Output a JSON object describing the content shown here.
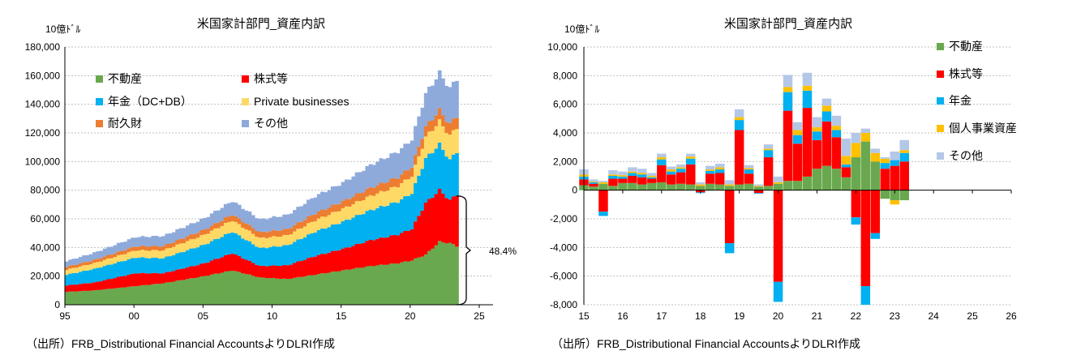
{
  "source_note": "（出所）FRB_Distributional Financial AccountsよりDLRI作成",
  "colors": {
    "real_estate": "#6aa84f",
    "equities": "#ff0000",
    "pension": "#00b0f0",
    "private_business": "#ffd966",
    "durables": "#ed7d31",
    "other": "#8eaadb",
    "other_right": "#b4c7e7",
    "private_business_right": "#ffc000"
  },
  "chart_data": [
    {
      "type": "area",
      "title": "米国家計部門_資産内訳",
      "ylabel": "10億ﾄﾞﾙ",
      "ylim": [
        0,
        180000
      ],
      "yticks": [
        0,
        20000,
        40000,
        60000,
        80000,
        100000,
        120000,
        140000,
        160000,
        180000
      ],
      "ytick_labels": [
        "0",
        "20,000",
        "40,000",
        "60,000",
        "80,000",
        "100,000",
        "120,000",
        "140,000",
        "160,000",
        "180,000"
      ],
      "xlim": [
        1995,
        2026
      ],
      "xticks": [
        1995,
        2000,
        2005,
        2010,
        2015,
        2020,
        2025
      ],
      "xtick_labels": [
        "95",
        "00",
        "05",
        "10",
        "15",
        "20",
        "25"
      ],
      "annotation": "48.4%",
      "legend": [
        "不動産",
        "株式等",
        "年金（DC+DB）",
        "Private businesses",
        "耐久財",
        "その他"
      ],
      "anchor_years": [
        1995,
        1997,
        2000,
        2002,
        2005,
        2007,
        2009,
        2011,
        2013,
        2015,
        2017,
        2019,
        2020,
        2021,
        2022,
        2022.75,
        2023.25
      ],
      "series": [
        {
          "name": "不動産",
          "values": [
            9000,
            10000,
            13000,
            15000,
            20000,
            24000,
            19000,
            18000,
            21000,
            24000,
            27000,
            29000,
            31000,
            35000,
            44000,
            43000,
            41000
          ]
        },
        {
          "name": "株式等",
          "values": [
            4500,
            5500,
            9000,
            7000,
            9000,
            12000,
            8000,
            9500,
            13000,
            15000,
            18000,
            20000,
            22000,
            36000,
            36000,
            30000,
            36000
          ]
        },
        {
          "name": "年金（DC+DB）",
          "values": [
            7500,
            9500,
            11000,
            10500,
            13000,
            15000,
            12500,
            14000,
            17000,
            19000,
            21000,
            23000,
            25000,
            31000,
            32000,
            28000,
            30000
          ]
        },
        {
          "name": "Private businesses",
          "values": [
            3500,
            4000,
            5000,
            5500,
            7000,
            8000,
            7000,
            7000,
            8000,
            9000,
            10000,
            11000,
            12000,
            15000,
            16000,
            17000,
            17000
          ]
        },
        {
          "name": "耐久財",
          "values": [
            2000,
            2300,
            2800,
            3000,
            3500,
            4000,
            4000,
            4300,
            4800,
            5200,
            5600,
            6000,
            6500,
            7200,
            7800,
            8000,
            8000
          ]
        },
        {
          "name": "その他",
          "values": [
            4000,
            5000,
            6500,
            7000,
            8000,
            9500,
            9000,
            10000,
            12000,
            13000,
            16000,
            18000,
            19000,
            23000,
            26000,
            25000,
            26000
          ]
        }
      ]
    },
    {
      "type": "bar",
      "title": "米国家計部門_資産内訳",
      "ylabel": "10億ﾄﾞﾙ",
      "ylim": [
        -8000,
        10000
      ],
      "yticks": [
        -8000,
        -6000,
        -4000,
        -2000,
        0,
        2000,
        4000,
        6000,
        8000,
        10000
      ],
      "ytick_labels": [
        "-8,000",
        "-6,000",
        "-4,000",
        "-2,000",
        "0",
        "2,000",
        "4,000",
        "6,000",
        "8,000",
        "10,000"
      ],
      "xlim": [
        2015,
        2026
      ],
      "xticks": [
        2015,
        2016,
        2017,
        2018,
        2019,
        2020,
        2021,
        2022,
        2023,
        2024,
        2025,
        2026
      ],
      "xtick_labels": [
        "15",
        "16",
        "17",
        "18",
        "19",
        "20",
        "21",
        "22",
        "23",
        "24",
        "25",
        "26"
      ],
      "legend": [
        "不動産",
        "株式等",
        "年金",
        "個人事業資産",
        "その他"
      ],
      "quarters": [
        "15Q1",
        "15Q2",
        "15Q3",
        "15Q4",
        "16Q1",
        "16Q2",
        "16Q3",
        "16Q4",
        "17Q1",
        "17Q2",
        "17Q3",
        "17Q4",
        "18Q1",
        "18Q2",
        "18Q3",
        "18Q4",
        "19Q1",
        "19Q2",
        "19Q3",
        "19Q4",
        "20Q1",
        "20Q2",
        "20Q3",
        "20Q4",
        "21Q1",
        "21Q2",
        "21Q3",
        "21Q4",
        "22Q1",
        "22Q2",
        "22Q3",
        "22Q4",
        "23Q1",
        "23Q2"
      ],
      "series": [
        {
          "name": "不動産",
          "values": [
            350,
            250,
            450,
            300,
            500,
            500,
            400,
            500,
            550,
            400,
            450,
            400,
            300,
            450,
            400,
            300,
            400,
            450,
            250,
            300,
            450,
            650,
            650,
            950,
            1500,
            1700,
            1500,
            900,
            2300,
            3400,
            2000,
            -600,
            -700,
            -700
          ]
        },
        {
          "name": "株式等",
          "values": [
            400,
            200,
            -1500,
            500,
            300,
            500,
            500,
            300,
            1200,
            700,
            800,
            1400,
            -150,
            700,
            800,
            -3700,
            3800,
            700,
            -200,
            2000,
            -6400,
            4900,
            2600,
            4800,
            2000,
            3100,
            2200,
            700,
            -1900,
            -6700,
            -3000,
            1500,
            1700,
            2000
          ]
        },
        {
          "name": "年金",
          "values": [
            200,
            100,
            -300,
            200,
            150,
            200,
            200,
            100,
            400,
            200,
            250,
            400,
            -50,
            200,
            250,
            -700,
            700,
            300,
            -50,
            500,
            -1400,
            1300,
            600,
            1200,
            600,
            700,
            500,
            200,
            -500,
            -1300,
            -400,
            400,
            400,
            600
          ]
        },
        {
          "name": "個人事業資産",
          "values": [
            150,
            50,
            100,
            100,
            100,
            100,
            100,
            100,
            150,
            150,
            100,
            150,
            100,
            100,
            150,
            100,
            200,
            100,
            50,
            100,
            100,
            350,
            350,
            350,
            300,
            400,
            300,
            600,
            1000,
            600,
            600,
            300,
            -300,
            200
          ]
        },
        {
          "name": "その他",
          "values": [
            350,
            150,
            100,
            300,
            250,
            300,
            300,
            200,
            250,
            200,
            200,
            200,
            150,
            250,
            250,
            300,
            550,
            200,
            100,
            300,
            400,
            850,
            550,
            900,
            700,
            500,
            700,
            1200,
            700,
            300,
            300,
            100,
            600,
            700
          ]
        }
      ]
    }
  ]
}
